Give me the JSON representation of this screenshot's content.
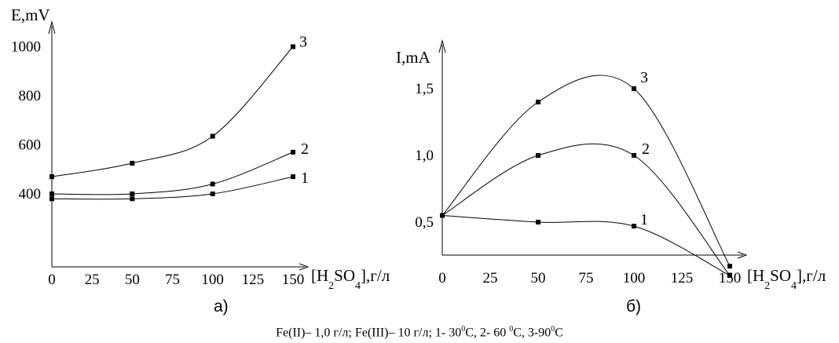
{
  "chart_data": [
    {
      "type": "line",
      "panel_label": "а)",
      "ylabel": "E,mV",
      "xlabel_parts": [
        "[H",
        "2",
        "SO",
        "4",
        "],г/л"
      ],
      "x": [
        0,
        50,
        100,
        150
      ],
      "xticks": [
        0,
        25,
        50,
        75,
        100,
        125,
        150
      ],
      "yticks": [
        400,
        600,
        800,
        1000
      ],
      "ylim": [
        350,
        1050
      ],
      "series": [
        {
          "name": "1",
          "values": [
            380,
            380,
            400,
            470
          ]
        },
        {
          "name": "2",
          "values": [
            400,
            400,
            440,
            570
          ]
        },
        {
          "name": "3",
          "values": [
            470,
            525,
            635,
            1000
          ]
        }
      ]
    },
    {
      "type": "line",
      "panel_label": "б)",
      "ylabel": "I,mA",
      "xlabel_parts": [
        "[H",
        "2",
        "SO",
        "4",
        "],г/л"
      ],
      "x": [
        0,
        50,
        100,
        150
      ],
      "xticks": [
        0,
        25,
        50,
        75,
        100,
        125,
        150
      ],
      "yticks": [
        "0,5",
        "1,0",
        "1,5"
      ],
      "ylim": [
        0,
        1.8
      ],
      "series": [
        {
          "name": "1",
          "values": [
            0.55,
            0.5,
            0.47,
            0.1
          ]
        },
        {
          "name": "2",
          "values": [
            0.55,
            1.0,
            1.0,
            0.1
          ]
        },
        {
          "name": "3",
          "values": [
            0.55,
            1.4,
            1.5,
            0.17
          ]
        }
      ]
    }
  ],
  "caption": {
    "parts": [
      "Fe(II)– 1,0 г/л; Fe(III)– 10 г/л; 1- 30",
      "0",
      "С, 2- 60 ",
      "0",
      "С, 3-90",
      "0",
      "С"
    ]
  }
}
